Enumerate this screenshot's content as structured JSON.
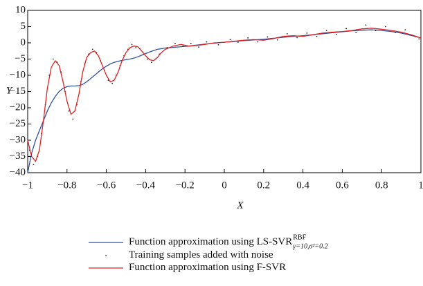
{
  "chart_data": {
    "type": "line",
    "xlabel": "X",
    "ylabel": "Y",
    "xlim": [
      -1,
      1
    ],
    "xticks": [
      {
        "value": -1,
        "label": "−1"
      },
      {
        "value": -0.8,
        "label": "−0.8"
      },
      {
        "value": -0.6,
        "label": "−0.6"
      },
      {
        "value": -0.4,
        "label": "−0.4"
      },
      {
        "value": -0.2,
        "label": "−0.2"
      },
      0,
      0.2,
      0.4,
      0.6,
      0.8,
      1
    ],
    "ylim": [
      -40,
      10
    ],
    "yticks": [
      {
        "value": -40,
        "label": "−40"
      },
      {
        "value": -35,
        "label": "−35"
      },
      {
        "value": -30,
        "label": "−30"
      },
      {
        "value": -25,
        "label": "−25"
      },
      {
        "value": -20,
        "label": "−20"
      },
      {
        "value": -15,
        "label": "−15"
      },
      {
        "value": -10,
        "label": "−10"
      },
      {
        "value": -5,
        "label": "−5"
      },
      0,
      5,
      10
    ],
    "series": [
      {
        "name": "Function approximation using LS-SVR",
        "name_sup": "RBF",
        "name_sub": "γ=10,σ²=0.2",
        "color": "#2f4f9f",
        "kind": "line",
        "x": [
          -1,
          -0.98,
          -0.96,
          -0.94,
          -0.92,
          -0.9,
          -0.88,
          -0.86,
          -0.84,
          -0.82,
          -0.8,
          -0.78,
          -0.76,
          -0.74,
          -0.72,
          -0.7,
          -0.68,
          -0.66,
          -0.64,
          -0.62,
          -0.6,
          -0.58,
          -0.56,
          -0.54,
          -0.52,
          -0.5,
          -0.48,
          -0.46,
          -0.44,
          -0.42,
          -0.4,
          -0.38,
          -0.36,
          -0.34,
          -0.32,
          -0.3,
          -0.26,
          -0.22,
          -0.18,
          -0.14,
          -0.1,
          -0.05,
          0,
          0.05,
          0.1,
          0.15,
          0.2,
          0.25,
          0.3,
          0.35,
          0.4,
          0.45,
          0.5,
          0.55,
          0.6,
          0.65,
          0.7,
          0.75,
          0.8,
          0.85,
          0.9,
          0.95,
          1
        ],
        "values": [
          -40,
          -34,
          -30,
          -27,
          -24,
          -21,
          -18.5,
          -16.5,
          -15,
          -14,
          -13.5,
          -13.3,
          -13.3,
          -13.2,
          -12.8,
          -12,
          -11,
          -10,
          -9,
          -8,
          -7.2,
          -6.5,
          -6,
          -5.7,
          -5.4,
          -5.2,
          -5,
          -4.7,
          -4.3,
          -3.8,
          -3.3,
          -2.8,
          -2.4,
          -2,
          -1.8,
          -1.6,
          -1.4,
          -1.2,
          -1,
          -0.7,
          -0.4,
          -0.1,
          0.2,
          0.4,
          0.7,
          0.9,
          1.1,
          1.4,
          1.7,
          2,
          2.2,
          2.5,
          2.8,
          3.1,
          3.4,
          3.7,
          3.9,
          4,
          3.8,
          3.5,
          3,
          2.3,
          1.5
        ]
      },
      {
        "name": "Training samples added with noise",
        "color": "#222222",
        "kind": "scatter",
        "x": [
          -0.99,
          -0.97,
          -0.95,
          -0.93,
          -0.91,
          -0.89,
          -0.87,
          -0.85,
          -0.83,
          -0.81,
          -0.79,
          -0.77,
          -0.75,
          -0.73,
          -0.71,
          -0.69,
          -0.67,
          -0.65,
          -0.63,
          -0.61,
          -0.59,
          -0.57,
          -0.55,
          -0.53,
          -0.51,
          -0.49,
          -0.47,
          -0.45,
          -0.43,
          -0.41,
          -0.39,
          -0.37,
          -0.35,
          -0.33,
          -0.29,
          -0.25,
          -0.21,
          -0.17,
          -0.13,
          -0.09,
          -0.03,
          0.03,
          0.07,
          0.12,
          0.17,
          0.22,
          0.27,
          0.32,
          0.37,
          0.42,
          0.47,
          0.52,
          0.57,
          0.62,
          0.67,
          0.72,
          0.77,
          0.82,
          0.87,
          0.92,
          0.97,
          0.99
        ],
        "values": [
          -33,
          -37.5,
          -35,
          -28,
          -19,
          -10,
          -5,
          -6,
          -9,
          -15,
          -21,
          -23.5,
          -19,
          -12,
          -6.5,
          -3.5,
          -2,
          -3,
          -5.5,
          -8.5,
          -11.5,
          -12.5,
          -10,
          -7,
          -4,
          -2,
          -0.5,
          -1.5,
          -1.8,
          -3.5,
          -5,
          -6,
          -5,
          -3.5,
          -1.5,
          -0.2,
          -1,
          -0.2,
          -1.3,
          0.3,
          -0.6,
          1,
          0.2,
          1.5,
          0.3,
          1.8,
          0.9,
          2.8,
          1.6,
          3,
          2,
          3.8,
          2.6,
          4.4,
          3.2,
          5.5,
          3.8,
          5,
          3.2,
          4,
          2,
          1.2
        ]
      },
      {
        "name": "Function approximation using F-SVR",
        "color": "#e02020",
        "kind": "line",
        "x": [
          -1,
          -0.98,
          -0.96,
          -0.94,
          -0.92,
          -0.9,
          -0.88,
          -0.86,
          -0.84,
          -0.82,
          -0.8,
          -0.78,
          -0.76,
          -0.74,
          -0.72,
          -0.7,
          -0.68,
          -0.66,
          -0.64,
          -0.62,
          -0.6,
          -0.58,
          -0.56,
          -0.54,
          -0.52,
          -0.5,
          -0.48,
          -0.46,
          -0.44,
          -0.42,
          -0.4,
          -0.38,
          -0.36,
          -0.34,
          -0.32,
          -0.3,
          -0.26,
          -0.22,
          -0.18,
          -0.14,
          -0.1,
          -0.05,
          0,
          0.05,
          0.1,
          0.15,
          0.2,
          0.25,
          0.3,
          0.35,
          0.4,
          0.45,
          0.5,
          0.55,
          0.6,
          0.65,
          0.7,
          0.75,
          0.8,
          0.85,
          0.9,
          0.95,
          1
        ],
        "values": [
          -30,
          -35,
          -36.5,
          -33,
          -24,
          -14,
          -7.5,
          -5.5,
          -7,
          -12,
          -18,
          -22,
          -21,
          -16,
          -9,
          -4.5,
          -3,
          -2.5,
          -4,
          -7,
          -10,
          -12,
          -11.5,
          -9,
          -5.5,
          -3,
          -1.5,
          -1,
          -1.2,
          -2.5,
          -4,
          -5.2,
          -5.5,
          -4.5,
          -3,
          -2,
          -1,
          -0.5,
          -1,
          -0.8,
          -0.5,
          0,
          0.2,
          0.5,
          0.8,
          1,
          0.8,
          1.3,
          2,
          2.2,
          2,
          2.5,
          3,
          3.3,
          3.5,
          3.8,
          4.3,
          4.5,
          4.2,
          3.8,
          3.3,
          2.5,
          1.5
        ]
      }
    ]
  }
}
